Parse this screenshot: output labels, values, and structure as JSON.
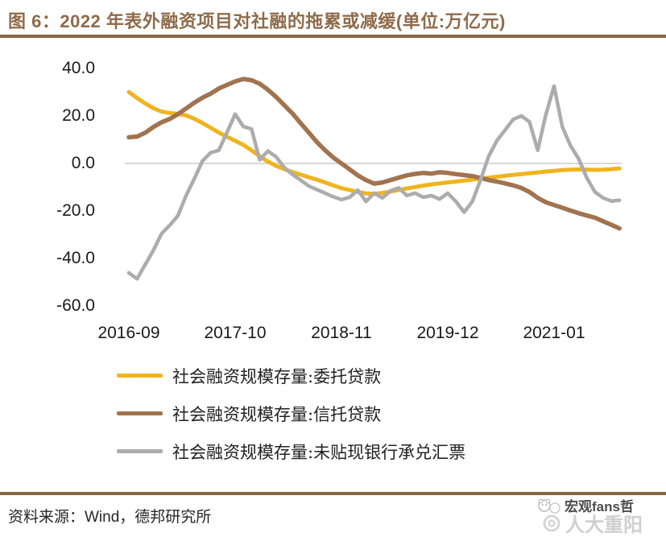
{
  "title": "图 6：2022 年表外融资项目对社融的拖累或减缓(单位:万亿元)",
  "source_note": "资料来源：Wind，德邦研究所",
  "watermark": {
    "primary": "宏观fans哲",
    "secondary": "人大重阳"
  },
  "colors": {
    "title_brown": "#8F6B4A",
    "rule_brown": "#8A6543",
    "gridline": "#D9D9D9",
    "axis_text": "#1A1A1A",
    "entrusted_loans": "#F0B41E",
    "trust_loans": "#A1734F",
    "undiscounted_bills": "#ACACAC"
  },
  "chart_data": {
    "type": "line",
    "title": "图 6：2022 年表外融资项目对社融的拖累或减缓",
    "unit": "万亿元",
    "ylim": [
      -60,
      40
    ],
    "grid": "zero-line-only",
    "legend_position": "bottom-left",
    "y_tick_labels": [
      "40.0",
      "20.0",
      "0.0",
      "-20.0",
      "-40.0",
      "-60.0"
    ],
    "x_tick_labels": [
      "2016-09",
      "2017-10",
      "2018-11",
      "2019-12",
      "2021-01"
    ],
    "x_tick_month_indices": [
      0,
      13,
      26,
      39,
      52
    ],
    "x": [
      "2016-09",
      "2016-10",
      "2016-11",
      "2016-12",
      "2017-01",
      "2017-02",
      "2017-03",
      "2017-04",
      "2017-05",
      "2017-06",
      "2017-07",
      "2017-08",
      "2017-09",
      "2017-10",
      "2017-11",
      "2017-12",
      "2018-01",
      "2018-02",
      "2018-03",
      "2018-04",
      "2018-05",
      "2018-06",
      "2018-07",
      "2018-08",
      "2018-09",
      "2018-10",
      "2018-11",
      "2018-12",
      "2019-01",
      "2019-02",
      "2019-03",
      "2019-04",
      "2019-05",
      "2019-06",
      "2019-07",
      "2019-08",
      "2019-09",
      "2019-10",
      "2019-11",
      "2019-12",
      "2020-01",
      "2020-02",
      "2020-03",
      "2020-04",
      "2020-05",
      "2020-06",
      "2020-07",
      "2020-08",
      "2020-09",
      "2020-10",
      "2020-11",
      "2020-12",
      "2021-01",
      "2021-02",
      "2021-03",
      "2021-04",
      "2021-05",
      "2021-06",
      "2021-07",
      "2021-08",
      "2021-09"
    ],
    "series": [
      {
        "key": "entrusted-loans",
        "name": "社会融资规模存量:委托贷款",
        "color": "#F0B41E",
        "values": [
          30,
          27.5,
          25.2,
          23.2,
          21.8,
          21.2,
          20.8,
          20.2,
          18.8,
          17,
          15,
          13,
          11.2,
          9.5,
          7.8,
          5.5,
          3,
          0.8,
          -1,
          -2.4,
          -3.6,
          -4.7,
          -5.8,
          -6.8,
          -8,
          -9.2,
          -10.4,
          -11.2,
          -12,
          -12.6,
          -12.8,
          -12.4,
          -11.8,
          -11.2,
          -10.5,
          -9.9,
          -9.3,
          -8.8,
          -8.4,
          -8,
          -7.6,
          -7.2,
          -6.8,
          -6.4,
          -6,
          -5.6,
          -5.2,
          -4.8,
          -4.5,
          -4.1,
          -3.8,
          -3.4,
          -3.1,
          -2.8,
          -2.6,
          -2.5,
          -2.6,
          -2.7,
          -2.6,
          -2.4,
          -2.1
        ]
      },
      {
        "key": "trust-loans",
        "name": "社会融资规模存量:信托贷款",
        "color": "#A1734F",
        "values": [
          11,
          11.3,
          12.9,
          15.3,
          17.3,
          18.7,
          20.7,
          23.1,
          25.5,
          27.6,
          29.3,
          31.5,
          33,
          34.5,
          35.5,
          35,
          33.5,
          31,
          28,
          24.5,
          21,
          17,
          13,
          9,
          5.5,
          2.5,
          0,
          -2.5,
          -5,
          -7,
          -8.5,
          -8,
          -7,
          -6,
          -5,
          -4.4,
          -4,
          -4.3,
          -3.7,
          -4,
          -4.5,
          -4.9,
          -5.3,
          -6.1,
          -7,
          -7.6,
          -8.4,
          -9.2,
          -10.3,
          -12,
          -14.5,
          -16.3,
          -17.5,
          -18.6,
          -19.8,
          -20.9,
          -21.9,
          -22.8,
          -24.3,
          -25.8,
          -27.3
        ]
      },
      {
        "key": "undiscounted-bills",
        "name": "社会融资规模存量:未贴现银行承兑汇票",
        "color": "#ACACAC",
        "values": [
          -46,
          -48.5,
          -42.5,
          -36.5,
          -29.5,
          -26,
          -22,
          -13.5,
          -6.5,
          1,
          4.5,
          5.5,
          13,
          20.7,
          15.5,
          14.5,
          1.5,
          5.2,
          2.8,
          -1.7,
          -4.6,
          -7,
          -9.5,
          -11,
          -12.5,
          -14,
          -15.2,
          -14.2,
          -11.2,
          -16,
          -12.5,
          -14.5,
          -11.5,
          -10.3,
          -13.5,
          -12.5,
          -14.2,
          -13.5,
          -15,
          -12.5,
          -16,
          -20.5,
          -16,
          -7,
          3,
          9.5,
          14,
          18.5,
          20,
          17.5,
          5.5,
          20.5,
          32.5,
          15.5,
          7.5,
          2,
          -6,
          -12,
          -14.5,
          -15.8,
          -15.5
        ]
      }
    ]
  }
}
